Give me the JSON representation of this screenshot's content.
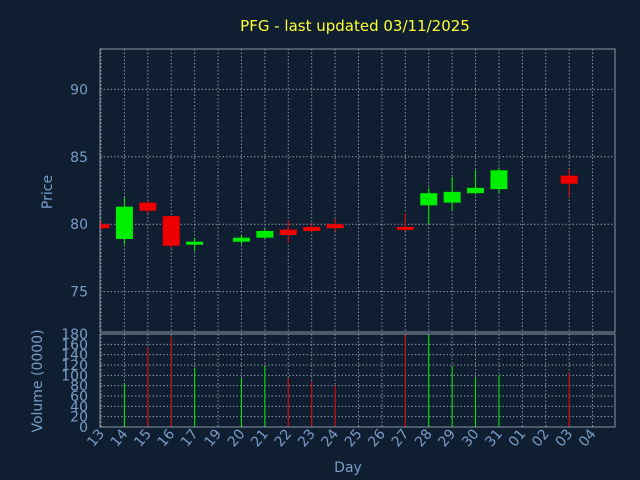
{
  "chart_data": {
    "type": "candlestick",
    "title": "PFG - last updated 03/11/2025",
    "price_panel": {
      "ylabel": "Price",
      "ylim": [
        72,
        93
      ],
      "yticks": [
        75,
        80,
        85,
        90
      ],
      "grid": true
    },
    "volume_panel": {
      "ylabel": "Volume (0000)",
      "ylim": [
        0,
        180
      ],
      "yticks": [
        0,
        20,
        40,
        60,
        80,
        100,
        120,
        140,
        160,
        180
      ],
      "grid": true
    },
    "xlabel": "Day",
    "xticks": [
      "13",
      "14",
      "15",
      "16",
      "17",
      "19",
      "20",
      "21",
      "22",
      "23",
      "24",
      "25",
      "26",
      "27",
      "28",
      "29",
      "30",
      "31",
      "01",
      "02",
      "03",
      "04"
    ],
    "candles": [
      {
        "day": "13",
        "open": 80.0,
        "high": 80.2,
        "low": 79.6,
        "close": 79.7,
        "volume": 0
      },
      {
        "day": "14",
        "open": 78.9,
        "high": 82.0,
        "low": 78.5,
        "close": 81.3,
        "volume": 84
      },
      {
        "day": "15",
        "open": 81.6,
        "high": 81.7,
        "low": 80.8,
        "close": 81.0,
        "volume": 155
      },
      {
        "day": "16",
        "open": 80.6,
        "high": 80.6,
        "low": 78.2,
        "close": 78.4,
        "volume": 175
      },
      {
        "day": "17",
        "open": 78.5,
        "high": 79.0,
        "low": 78.0,
        "close": 78.7,
        "volume": 115
      },
      {
        "day": "20",
        "open": 78.7,
        "high": 79.2,
        "low": 78.5,
        "close": 79.0,
        "volume": 95
      },
      {
        "day": "21",
        "open": 79.0,
        "high": 79.7,
        "low": 78.9,
        "close": 79.5,
        "volume": 118
      },
      {
        "day": "22",
        "open": 79.6,
        "high": 80.3,
        "low": 78.6,
        "close": 79.2,
        "volume": 95
      },
      {
        "day": "23",
        "open": 79.8,
        "high": 80.1,
        "low": 79.4,
        "close": 79.5,
        "volume": 88
      },
      {
        "day": "24",
        "open": 80.0,
        "high": 80.4,
        "low": 79.5,
        "close": 79.7,
        "volume": 80
      },
      {
        "day": "27",
        "open": 79.8,
        "high": 80.8,
        "low": 79.5,
        "close": 79.6,
        "volume": 180
      },
      {
        "day": "28",
        "open": 81.4,
        "high": 82.7,
        "low": 80.0,
        "close": 82.3,
        "volume": 180
      },
      {
        "day": "29",
        "open": 81.6,
        "high": 83.5,
        "low": 81.0,
        "close": 82.4,
        "volume": 118
      },
      {
        "day": "30",
        "open": 82.3,
        "high": 84.0,
        "low": 82.2,
        "close": 82.7,
        "volume": 95
      },
      {
        "day": "31",
        "open": 82.6,
        "high": 84.2,
        "low": 82.3,
        "close": 84.0,
        "volume": 100
      },
      {
        "day": "03",
        "open": 83.6,
        "high": 84.1,
        "low": 82.0,
        "close": 83.0,
        "volume": 105
      }
    ],
    "colors": {
      "up": "#00ee00",
      "down": "#ee0000",
      "background": "#0f1e30",
      "title": "#ffff33",
      "axis_text": "#7a9cc6",
      "grid": "#8a96a6"
    }
  }
}
